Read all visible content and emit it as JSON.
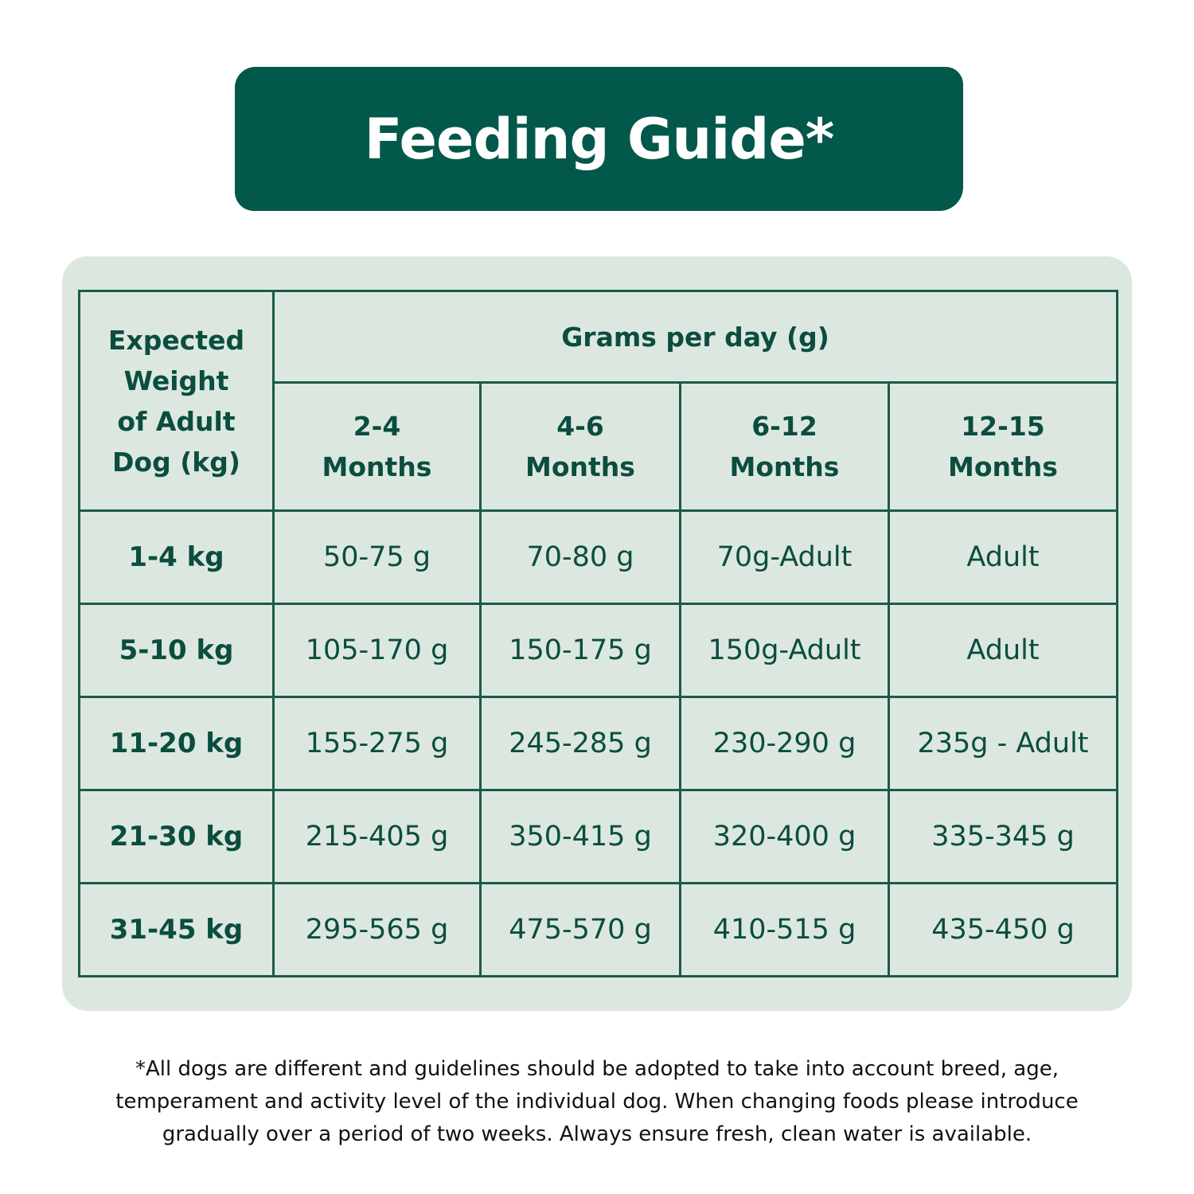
{
  "title": "Feeding Guide*",
  "table": {
    "row_header": [
      "Expected",
      "Weight",
      "of Adult",
      "Dog (kg)"
    ],
    "group_header": "Grams per day (g)",
    "columns": [
      [
        "2-4",
        "Months"
      ],
      [
        "4-6",
        "Months"
      ],
      [
        "6-12",
        "Months"
      ],
      [
        "12-15",
        "Months"
      ]
    ],
    "rows": [
      {
        "weight": "1-4 kg",
        "values": [
          "50-75 g",
          "70-80 g",
          "70g-Adult",
          "Adult"
        ]
      },
      {
        "weight": "5-10 kg",
        "values": [
          "105-170 g",
          "150-175 g",
          "150g-Adult",
          "Adult"
        ]
      },
      {
        "weight": "11-20 kg",
        "values": [
          "155-275 g",
          "245-285 g",
          "230-290 g",
          "235g - Adult"
        ]
      },
      {
        "weight": "21-30 kg",
        "values": [
          "215-405 g",
          "350-415 g",
          "320-400 g",
          "335-345 g"
        ]
      },
      {
        "weight": "31-45 kg",
        "values": [
          "295-565 g",
          "475-570 g",
          "410-515 g",
          "435-450 g"
        ]
      }
    ]
  },
  "footnote": [
    "*All dogs are different and guidelines should be adopted to take into account breed, age,",
    "temperament and activity level of the individual dog. When changing foods please introduce",
    "gradually over a period of two weeks. Always ensure fresh, clean water is available."
  ],
  "colors": {
    "brand": "#02584a",
    "panel": "#dce8df",
    "text": "#0b4d40"
  }
}
